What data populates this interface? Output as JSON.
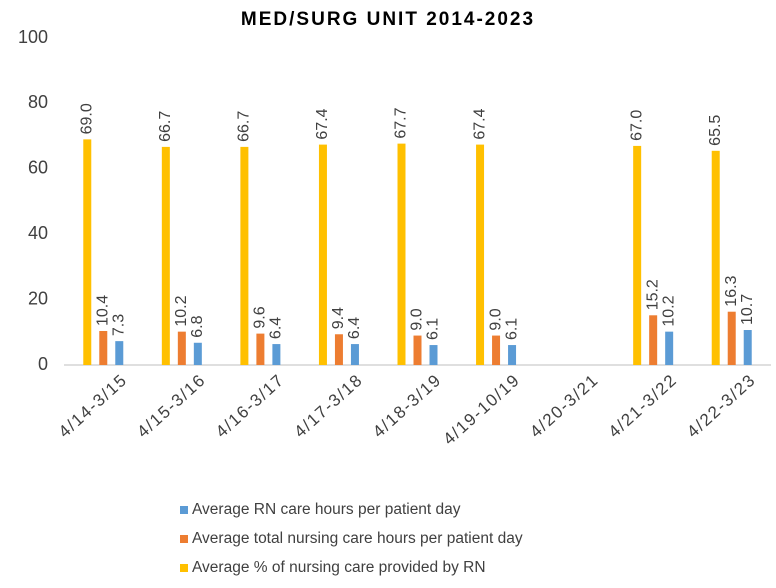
{
  "chart_data": {
    "type": "bar",
    "title": "MED/SURG UNIT 2014-2023",
    "categories": [
      "4/14-3/15",
      "4/15-3/16",
      "4/16-3/17",
      "4/17-3/18",
      "4/18-3/19",
      "4/19-10/19",
      "4/20-3/21",
      "4/21-3/22",
      "4/22-3/23"
    ],
    "series": [
      {
        "name": "Average % of nursing care provided by RN",
        "color": "#ffc000",
        "values": [
          69.0,
          66.7,
          66.7,
          67.4,
          67.7,
          67.4,
          null,
          67.0,
          65.5
        ],
        "value_labels": [
          "69.0",
          "66.7",
          "66.7",
          "67.4",
          "67.7",
          "67.4",
          null,
          "67.0",
          "65.5"
        ]
      },
      {
        "name": "Average total nursing care hours per patient day",
        "color": "#ed7d31",
        "values": [
          10.4,
          10.2,
          9.6,
          9.4,
          9.0,
          9.0,
          null,
          15.2,
          16.3
        ],
        "value_labels": [
          "10.4",
          "10.2",
          "9.6",
          "9.4",
          "9.0",
          "9.0",
          null,
          "15.2",
          "16.3"
        ]
      },
      {
        "name": "Average RN care hours per patient day",
        "color": "#5b9bd5",
        "values": [
          7.3,
          6.8,
          6.4,
          6.4,
          6.1,
          6.1,
          null,
          10.2,
          10.7
        ],
        "value_labels": [
          "7.3",
          "6.8",
          "6.4",
          "6.4",
          "6.1",
          "6.1",
          null,
          "10.2",
          "10.7"
        ]
      }
    ],
    "legend_order": [
      2,
      1,
      0
    ],
    "ylim": [
      0,
      100
    ],
    "yticks": [
      0,
      20,
      40,
      60,
      80,
      100
    ],
    "grid": false
  }
}
